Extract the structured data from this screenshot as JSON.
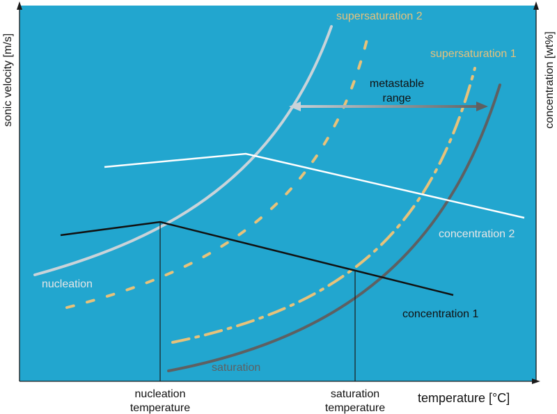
{
  "colors": {
    "plot_background": "#22a6cf",
    "axis": "#1a1a1a",
    "nucleation_curve": "#c9d3d9",
    "supersaturation_curves": "#e7c27a",
    "saturation_curve": "#5e6062",
    "concentration_2": "#ffffff",
    "concentration_1": "#111111",
    "metastable_arrow_start": "#c9d3d9",
    "metastable_arrow_end": "#5e6062",
    "label_light": "#e6e6e6",
    "label_tan": "#e7c27a",
    "label_gray": "#5e6062",
    "label_dark": "#111111"
  },
  "axes": {
    "y_left_label": "sonic velocity [m/s]",
    "y_right_label": "concentration [wt%]",
    "x_label": "temperature [°C]"
  },
  "curves": {
    "nucleation": "nucleation",
    "supersaturation_2": "supersaturation 2",
    "supersaturation_1": "supersaturation 1",
    "saturation": "saturation",
    "concentration_2": "concentration 2",
    "concentration_1": "concentration 1"
  },
  "metastable": {
    "line1": "metastable",
    "line2": "range"
  },
  "x_markers": {
    "nucleation": {
      "line1": "nucleation",
      "line2": "temperature"
    },
    "saturation": {
      "line1": "saturation",
      "line2": "temperature"
    }
  }
}
